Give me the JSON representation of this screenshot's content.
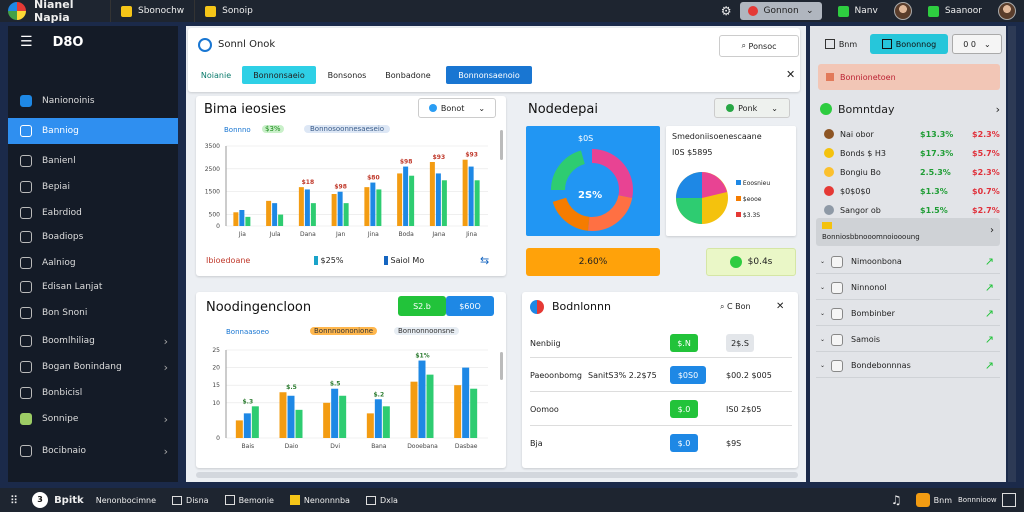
{
  "topbar": {
    "app_title": "Nianel Napia",
    "tab1": "Sbonochw",
    "tab2": "Sonoip",
    "pill1": "Gonnon",
    "pill2": "Nanv",
    "pill3": "Saanoor"
  },
  "sidebar": {
    "title": "D8O",
    "items": [
      {
        "label": "Nanionoinis",
        "icon": "app-icon"
      },
      {
        "label": "Banniog",
        "icon": "user-icon"
      },
      {
        "label": "Banienl",
        "icon": "document-icon"
      },
      {
        "label": "Bepiai",
        "icon": "document-icon"
      },
      {
        "label": "Eabrdiod",
        "icon": "list-icon"
      },
      {
        "label": "Boadiops",
        "icon": "settings-icon"
      },
      {
        "label": "Aalniog",
        "icon": "chart-icon"
      },
      {
        "label": "Edisan Lanjat",
        "icon": "link-icon"
      },
      {
        "label": "Bon Snoni",
        "icon": "settings-icon"
      },
      {
        "label": "Boomlhiliag",
        "icon": "settings-icon"
      },
      {
        "label": "Bogan Bonindang",
        "icon": "settings-icon"
      },
      {
        "label": "Bonbicisl",
        "icon": "settings-icon"
      },
      {
        "label": "Sonnipe",
        "icon": "app-icon"
      },
      {
        "label": "Bocibnaio",
        "icon": "calendar-icon"
      }
    ]
  },
  "main": {
    "header_title": "Sonnl Onok",
    "search_label": "Ponsoc",
    "tabs": [
      "Noianie",
      "Bonnonsaeio",
      "Bonsonos",
      "Bonbadone",
      "Bonnonsaenoio"
    ],
    "card1": {
      "title": "Bima ieosies",
      "dropdown": "Bonot",
      "legend": [
        "Bonnno",
        "$3%",
        "Bonnosoonnesaeseio"
      ],
      "footer_left": "Ibioedoane",
      "footer_mid": "$25%",
      "footer_right": "Saiol Mo"
    },
    "card2": {
      "title": "Nodedepai",
      "dropdown": "Ponk",
      "subtitle": "Smedoniisoenescaane",
      "sub2": "I0S $5895",
      "donut_top": "$0S",
      "donut_center": "2S%",
      "pie_legend": [
        "Eoosnieu",
        "$eooe",
        "$3.3S"
      ],
      "stat_left": "2.60%",
      "stat_right": "$0.4s"
    },
    "card3": {
      "title": "Noodingencloon",
      "btn_green": "S2.b",
      "btn_blue": "$60O",
      "legend": [
        "Bonnaasoeo",
        "Bonnnoononione",
        "Bonnonnoonsne"
      ]
    },
    "card4": {
      "title": "Bodnlonnn",
      "header_btn": "C Bon",
      "rows": [
        {
          "label": "Nenbiig",
          "badge": "$.N",
          "value": "2$.S"
        },
        {
          "label": "Paeoonbomg",
          "mid": "SanitS3% 2.2$75",
          "badge": "$0S0",
          "value": "$00.2 $005"
        },
        {
          "label": "Oomoo",
          "badge": "$.0",
          "value": "IS0 2$05"
        },
        {
          "label": "Bja",
          "badge": "$.0",
          "value": "$9S"
        }
      ]
    }
  },
  "right": {
    "top_btn1": "Bnm",
    "top_btn2": "Bononnog",
    "top_btn3": "0 0",
    "banner": "Bonnionetoen",
    "section": "Bomntday",
    "rows": [
      {
        "name": "Nai obor",
        "v1": "$13.3%",
        "v2": "$2.3%"
      },
      {
        "name": "Bonds $ H3",
        "v1": "$17.3%",
        "v2": "$5.7%"
      },
      {
        "name": "Bongiu Bo",
        "v1": "2.5.3%",
        "v2": "$2.3%"
      },
      {
        "name": "$0$0$0",
        "v1": "$1.3%",
        "v2": "$0.7%"
      },
      {
        "name": "Sangor ob",
        "v1": "$1.5%",
        "v2": "$2.7%"
      }
    ],
    "sub_banner": "Bonniosbbnooomnoioooung",
    "list": [
      "Nimoonbona",
      "Ninnonol",
      "Bombinber",
      "Samois",
      "Bondebonnnas"
    ]
  },
  "bottombar": {
    "item1": "Bpitk",
    "item2": "Nenonbocimne",
    "item3": "Disna",
    "item4": "Bemonie",
    "item5": "Nenonnnba",
    "item6": "Dxla",
    "right1": "Bnm",
    "right2": "Bonnnioow"
  },
  "chart_data": [
    {
      "type": "bar",
      "ylim": [
        0,
        3500
      ],
      "yticks": [
        "0",
        "500",
        "1500",
        "2500",
        "3500"
      ],
      "categories": [
        "Jia",
        "Jula",
        "Dana",
        "Jan",
        "Jina",
        "Boda",
        "Jana",
        "Jina"
      ],
      "series": [
        {
          "name": "",
          "values": [
            600,
            1100,
            1700,
            1400,
            1700,
            2300,
            2800,
            2900
          ]
        },
        {
          "name": "",
          "values": [
            700,
            1000,
            1600,
            1500,
            1900,
            2600,
            2300,
            2600
          ]
        },
        {
          "name": "",
          "values": [
            400,
            500,
            1000,
            1000,
            1600,
            2200,
            2000,
            2000
          ]
        }
      ],
      "labels": [
        "",
        "",
        "$18",
        "$98",
        "$80",
        "$98",
        "$93",
        "$93"
      ]
    },
    {
      "type": "bar",
      "ylim": [
        0,
        25
      ],
      "yticks": [
        "0",
        "10",
        "15",
        "20",
        "25"
      ],
      "categories": [
        "Bais",
        "Daio",
        "Dvi",
        "Bana",
        "Dooebana",
        "Dasbae"
      ],
      "series": [
        {
          "name": "",
          "values": [
            5,
            13,
            10,
            7,
            16,
            15
          ]
        },
        {
          "name": "",
          "values": [
            7,
            12,
            14,
            11,
            22,
            20
          ]
        },
        {
          "name": "",
          "values": [
            9,
            8,
            12,
            9,
            18,
            14
          ]
        }
      ],
      "labels": [
        "$.3",
        "$.5",
        "$.5",
        "$.2",
        "$1%",
        ""
      ]
    }
  ]
}
